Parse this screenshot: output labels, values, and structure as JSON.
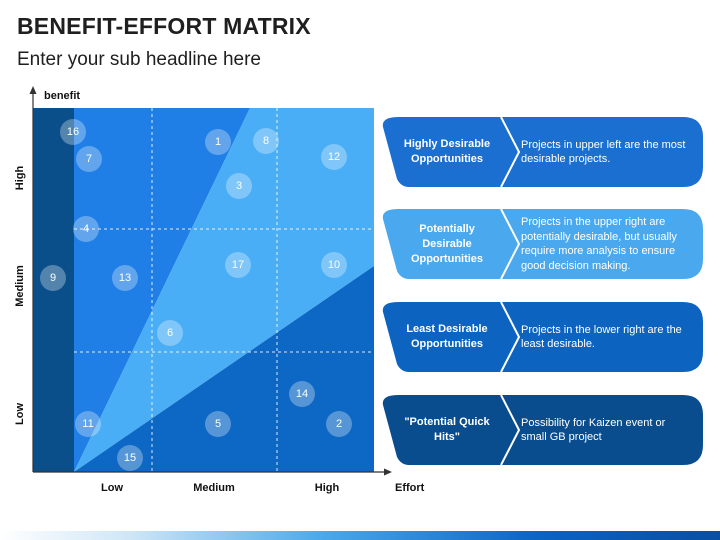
{
  "title": "BENEFIT-EFFORT MATRIX",
  "subtitle": "Enter your sub headline here",
  "axes": {
    "y_label": "benefit",
    "x_label": "Effort",
    "y_ticks": [
      "High",
      "Medium",
      "Low"
    ],
    "x_ticks": [
      "Low",
      "Medium",
      "High"
    ]
  },
  "markers": [
    {
      "label": "16"
    },
    {
      "label": "7"
    },
    {
      "label": "1"
    },
    {
      "label": "8"
    },
    {
      "label": "12"
    },
    {
      "label": "3"
    },
    {
      "label": "4"
    },
    {
      "label": "9"
    },
    {
      "label": "13"
    },
    {
      "label": "17"
    },
    {
      "label": "10"
    },
    {
      "label": "6"
    },
    {
      "label": "14"
    },
    {
      "label": "11"
    },
    {
      "label": "5"
    },
    {
      "label": "2"
    },
    {
      "label": "15"
    }
  ],
  "cards": [
    {
      "label": "Highly Desirable Opportunities",
      "desc": "Projects in upper left are the most desirable projects.",
      "color": "#1a6fd0"
    },
    {
      "label": "Potentially Desirable Opportunities",
      "desc": "Projects in the upper right are potentially desirable, but usually require more analysis to ensure good decision making.",
      "color": "#4aa8ee"
    },
    {
      "label": "Least Desirable Opportunities",
      "desc": "Projects in the lower right are the least desirable.",
      "color": "#0d63c0"
    },
    {
      "label": "\"Potential Quick Hits\"",
      "desc": "Possibility for Kaizen event or small GB project",
      "color": "#0a4d8e"
    }
  ],
  "colors": {
    "dark_strip": "#0a4f8a",
    "upper_left": "#1f7fe6",
    "middle_band": "#4aaef6",
    "lower_right": "#0d67c4"
  }
}
